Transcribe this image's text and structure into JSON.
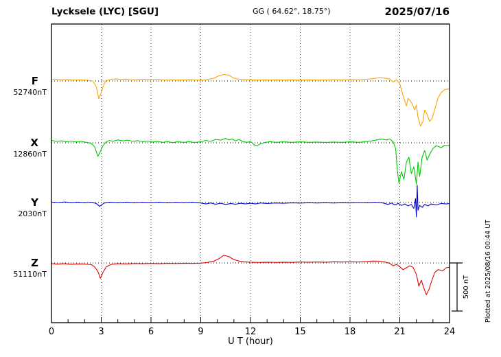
{
  "header": {
    "station": "Lycksele (LYC)  [SGU]",
    "coords": "GG ( 64.62°,  18.75°)",
    "date": "2025/07/16"
  },
  "footer": {
    "xlabel": "U T (hour)"
  },
  "side_note": "Plotted at 2025/08/16 00:44 UT",
  "scale_bar_label": "500 nT",
  "chart_data": {
    "type": "line",
    "title": "Lycksele (LYC) [SGU] magnetogram 2025/07/16",
    "xlabel": "U T (hour)",
    "x_range": [
      0,
      24
    ],
    "x_ticks": [
      0,
      3,
      6,
      9,
      12,
      15,
      18,
      21,
      24
    ],
    "grid": "vertical dotted lines at 3-hour ticks; dotted horizontal baseline per trace",
    "legend_position": "left of each trace",
    "scale_nT": 500,
    "units": "points are [UT hour, nT offset from baseline value]",
    "series": [
      {
        "name": "F",
        "color": "#FFA400",
        "baseline_label": "52740nT",
        "points": [
          [
            0,
            15
          ],
          [
            0.3,
            18
          ],
          [
            0.6,
            12
          ],
          [
            1,
            15
          ],
          [
            1.4,
            10
          ],
          [
            1.8,
            12
          ],
          [
            2.2,
            8
          ],
          [
            2.5,
            0
          ],
          [
            2.7,
            -60
          ],
          [
            2.85,
            -185
          ],
          [
            3,
            -120
          ],
          [
            3.15,
            -40
          ],
          [
            3.3,
            5
          ],
          [
            3.6,
            18
          ],
          [
            3.9,
            22
          ],
          [
            4.2,
            15
          ],
          [
            4.5,
            20
          ],
          [
            4.8,
            12
          ],
          [
            5.2,
            15
          ],
          [
            5.6,
            18
          ],
          [
            6,
            14
          ],
          [
            6.4,
            18
          ],
          [
            6.8,
            10
          ],
          [
            7.2,
            14
          ],
          [
            7.6,
            10
          ],
          [
            8,
            12
          ],
          [
            8.4,
            15
          ],
          [
            8.8,
            10
          ],
          [
            9.2,
            12
          ],
          [
            9.5,
            18
          ],
          [
            9.8,
            30
          ],
          [
            10.1,
            55
          ],
          [
            10.4,
            68
          ],
          [
            10.7,
            60
          ],
          [
            11,
            30
          ],
          [
            11.3,
            18
          ],
          [
            11.6,
            15
          ],
          [
            12,
            12
          ],
          [
            12.4,
            10
          ],
          [
            12.8,
            12
          ],
          [
            13.2,
            10
          ],
          [
            13.6,
            12
          ],
          [
            14,
            10
          ],
          [
            14.5,
            12
          ],
          [
            15,
            10
          ],
          [
            15.5,
            12
          ],
          [
            16,
            10
          ],
          [
            16.5,
            12
          ],
          [
            17,
            14
          ],
          [
            17.5,
            12
          ],
          [
            18,
            15
          ],
          [
            18.5,
            14
          ],
          [
            19,
            18
          ],
          [
            19.4,
            25
          ],
          [
            19.8,
            35
          ],
          [
            20.1,
            30
          ],
          [
            20.4,
            20
          ],
          [
            20.6,
            -10
          ],
          [
            20.8,
            15
          ],
          [
            21,
            -30
          ],
          [
            21.2,
            -150
          ],
          [
            21.4,
            -260
          ],
          [
            21.5,
            -180
          ],
          [
            21.7,
            -220
          ],
          [
            21.9,
            -300
          ],
          [
            22,
            -250
          ],
          [
            22.1,
            -380
          ],
          [
            22.25,
            -470
          ],
          [
            22.4,
            -420
          ],
          [
            22.5,
            -300
          ],
          [
            22.65,
            -350
          ],
          [
            22.8,
            -420
          ],
          [
            22.95,
            -390
          ],
          [
            23.1,
            -300
          ],
          [
            23.3,
            -180
          ],
          [
            23.5,
            -120
          ],
          [
            23.7,
            -90
          ],
          [
            24,
            -80
          ]
        ]
      },
      {
        "name": "X",
        "color": "#00C800",
        "baseline_label": "12860nT",
        "points": [
          [
            0,
            25
          ],
          [
            0.3,
            15
          ],
          [
            0.6,
            20
          ],
          [
            0.9,
            10
          ],
          [
            1.2,
            18
          ],
          [
            1.5,
            8
          ],
          [
            1.8,
            15
          ],
          [
            2.1,
            5
          ],
          [
            2.4,
            -5
          ],
          [
            2.6,
            -40
          ],
          [
            2.8,
            -140
          ],
          [
            2.95,
            -90
          ],
          [
            3.1,
            -30
          ],
          [
            3.3,
            10
          ],
          [
            3.5,
            25
          ],
          [
            3.7,
            15
          ],
          [
            4,
            30
          ],
          [
            4.3,
            20
          ],
          [
            4.6,
            28
          ],
          [
            4.9,
            15
          ],
          [
            5.2,
            22
          ],
          [
            5.5,
            10
          ],
          [
            5.8,
            18
          ],
          [
            6.1,
            8
          ],
          [
            6.4,
            15
          ],
          [
            6.7,
            5
          ],
          [
            7,
            12
          ],
          [
            7.3,
            2
          ],
          [
            7.6,
            10
          ],
          [
            8,
            5
          ],
          [
            8.3,
            12
          ],
          [
            8.6,
            3
          ],
          [
            9,
            10
          ],
          [
            9.3,
            25
          ],
          [
            9.6,
            15
          ],
          [
            9.9,
            35
          ],
          [
            10.2,
            28
          ],
          [
            10.5,
            45
          ],
          [
            10.7,
            30
          ],
          [
            10.9,
            40
          ],
          [
            11.1,
            20
          ],
          [
            11.3,
            35
          ],
          [
            11.5,
            15
          ],
          [
            11.8,
            5
          ],
          [
            12,
            15
          ],
          [
            12.2,
            -20
          ],
          [
            12.4,
            -30
          ],
          [
            12.6,
            -10
          ],
          [
            12.9,
            5
          ],
          [
            13.2,
            12
          ],
          [
            13.5,
            5
          ],
          [
            14,
            10
          ],
          [
            14.5,
            5
          ],
          [
            15,
            10
          ],
          [
            15.5,
            5
          ],
          [
            16,
            8
          ],
          [
            16.5,
            4
          ],
          [
            17,
            8
          ],
          [
            17.5,
            5
          ],
          [
            18,
            10
          ],
          [
            18.5,
            5
          ],
          [
            19,
            12
          ],
          [
            19.3,
            20
          ],
          [
            19.6,
            30
          ],
          [
            19.9,
            40
          ],
          [
            20.2,
            30
          ],
          [
            20.4,
            40
          ],
          [
            20.6,
            10
          ],
          [
            20.75,
            -60
          ],
          [
            20.85,
            -280
          ],
          [
            20.95,
            -420
          ],
          [
            21.1,
            -300
          ],
          [
            21.25,
            -380
          ],
          [
            21.4,
            -200
          ],
          [
            21.55,
            -150
          ],
          [
            21.7,
            -320
          ],
          [
            21.85,
            -250
          ],
          [
            22,
            -430
          ],
          [
            22.1,
            -200
          ],
          [
            22.2,
            -350
          ],
          [
            22.35,
            -150
          ],
          [
            22.5,
            -80
          ],
          [
            22.65,
            -180
          ],
          [
            22.8,
            -120
          ],
          [
            23,
            -60
          ],
          [
            23.2,
            -30
          ],
          [
            23.5,
            -50
          ],
          [
            23.7,
            -25
          ],
          [
            24,
            -30
          ]
        ]
      },
      {
        "name": "Y",
        "color": "#0000CD",
        "baseline_label": "2030nT",
        "points": [
          [
            0,
            5
          ],
          [
            0.4,
            0
          ],
          [
            0.8,
            6
          ],
          [
            1.2,
            -2
          ],
          [
            1.6,
            4
          ],
          [
            2,
            -3
          ],
          [
            2.4,
            2
          ],
          [
            2.7,
            -10
          ],
          [
            2.9,
            -40
          ],
          [
            3.05,
            -20
          ],
          [
            3.2,
            -5
          ],
          [
            3.5,
            3
          ],
          [
            4,
            -2
          ],
          [
            4.5,
            4
          ],
          [
            5,
            -3
          ],
          [
            5.5,
            2
          ],
          [
            6,
            -2
          ],
          [
            6.5,
            3
          ],
          [
            7,
            -3
          ],
          [
            7.5,
            2
          ],
          [
            8,
            -2
          ],
          [
            8.5,
            3
          ],
          [
            9,
            -5
          ],
          [
            9.3,
            -15
          ],
          [
            9.6,
            -5
          ],
          [
            9.9,
            -18
          ],
          [
            10.2,
            -8
          ],
          [
            10.5,
            -20
          ],
          [
            10.8,
            -10
          ],
          [
            11.1,
            -18
          ],
          [
            11.4,
            -8
          ],
          [
            11.7,
            -15
          ],
          [
            12,
            -8
          ],
          [
            12.3,
            -15
          ],
          [
            12.6,
            -5
          ],
          [
            13,
            -10
          ],
          [
            13.5,
            -5
          ],
          [
            14,
            -8
          ],
          [
            14.5,
            -3
          ],
          [
            15,
            -6
          ],
          [
            15.5,
            -2
          ],
          [
            16,
            -5
          ],
          [
            16.5,
            -2
          ],
          [
            17,
            -5
          ],
          [
            17.5,
            -2
          ],
          [
            18,
            -4
          ],
          [
            18.5,
            0
          ],
          [
            19,
            -3
          ],
          [
            19.5,
            2
          ],
          [
            20,
            -5
          ],
          [
            20.3,
            -20
          ],
          [
            20.5,
            -5
          ],
          [
            20.7,
            -25
          ],
          [
            20.9,
            -10
          ],
          [
            21.1,
            -30
          ],
          [
            21.3,
            -15
          ],
          [
            21.5,
            -35
          ],
          [
            21.7,
            -20
          ],
          [
            21.85,
            -60
          ],
          [
            21.95,
            40
          ],
          [
            22,
            -150
          ],
          [
            22.05,
            180
          ],
          [
            22.1,
            -80
          ],
          [
            22.2,
            -30
          ],
          [
            22.35,
            -50
          ],
          [
            22.5,
            -20
          ],
          [
            22.7,
            -35
          ],
          [
            22.9,
            -15
          ],
          [
            23.2,
            -25
          ],
          [
            23.5,
            -10
          ],
          [
            23.8,
            -15
          ],
          [
            24,
            -10
          ]
        ]
      },
      {
        "name": "Z",
        "color": "#E00000",
        "baseline_label": "51110nT",
        "points": [
          [
            0,
            -8
          ],
          [
            0.4,
            -12
          ],
          [
            0.8,
            -8
          ],
          [
            1.2,
            -15
          ],
          [
            1.6,
            -10
          ],
          [
            2,
            -12
          ],
          [
            2.4,
            -18
          ],
          [
            2.6,
            -40
          ],
          [
            2.8,
            -90
          ],
          [
            2.95,
            -160
          ],
          [
            3.1,
            -100
          ],
          [
            3.3,
            -40
          ],
          [
            3.6,
            -15
          ],
          [
            4,
            -8
          ],
          [
            4.5,
            -10
          ],
          [
            5,
            -6
          ],
          [
            5.5,
            -8
          ],
          [
            6,
            -5
          ],
          [
            6.5,
            -8
          ],
          [
            7,
            -4
          ],
          [
            7.5,
            -6
          ],
          [
            8,
            -3
          ],
          [
            8.5,
            -5
          ],
          [
            9,
            -2
          ],
          [
            9.4,
            5
          ],
          [
            9.8,
            20
          ],
          [
            10.1,
            45
          ],
          [
            10.4,
            80
          ],
          [
            10.7,
            65
          ],
          [
            11,
            35
          ],
          [
            11.3,
            20
          ],
          [
            11.6,
            12
          ],
          [
            12,
            8
          ],
          [
            12.5,
            5
          ],
          [
            13,
            8
          ],
          [
            13.5,
            5
          ],
          [
            14,
            8
          ],
          [
            14.5,
            6
          ],
          [
            15,
            10
          ],
          [
            15.5,
            8
          ],
          [
            16,
            10
          ],
          [
            16.5,
            8
          ],
          [
            17,
            12
          ],
          [
            17.5,
            10
          ],
          [
            18,
            12
          ],
          [
            18.5,
            10
          ],
          [
            19,
            15
          ],
          [
            19.4,
            20
          ],
          [
            19.8,
            18
          ],
          [
            20.1,
            10
          ],
          [
            20.4,
            -5
          ],
          [
            20.6,
            -30
          ],
          [
            20.8,
            -15
          ],
          [
            21,
            -40
          ],
          [
            21.2,
            -70
          ],
          [
            21.4,
            -50
          ],
          [
            21.6,
            -30
          ],
          [
            21.8,
            -45
          ],
          [
            22,
            -120
          ],
          [
            22.15,
            -240
          ],
          [
            22.3,
            -180
          ],
          [
            22.45,
            -260
          ],
          [
            22.6,
            -330
          ],
          [
            22.75,
            -280
          ],
          [
            22.9,
            -200
          ],
          [
            23.1,
            -100
          ],
          [
            23.3,
            -70
          ],
          [
            23.6,
            -80
          ],
          [
            23.8,
            -50
          ],
          [
            24,
            -45
          ]
        ]
      }
    ]
  }
}
